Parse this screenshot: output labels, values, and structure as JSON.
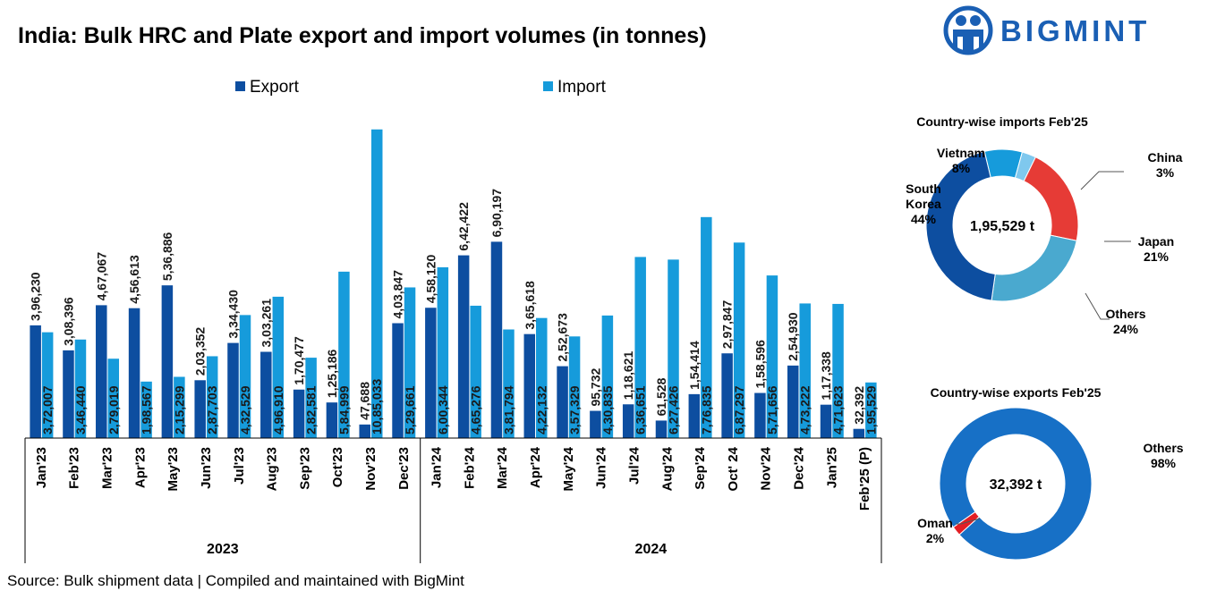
{
  "title": "India: Bulk HRC and Plate export and import volumes (in tonnes)",
  "logo_text": "BIGMINT",
  "source": "Source: Bulk shipment data | Compiled and maintained with BigMint",
  "colors": {
    "export": "#0d4ea0",
    "import": "#169bdb",
    "logo": "#1a5fb4"
  },
  "chart_data": [
    {
      "type": "bar",
      "legend": [
        "Export",
        "Import"
      ],
      "legend_position": "top",
      "grid": false,
      "ylim": [
        0,
        1100000
      ],
      "categories": [
        "Jan'23",
        "Feb'23",
        "Mar'23",
        "Apr'23",
        "May'23",
        "Jun'23",
        "Jul'23",
        "Aug'23",
        "Sep'23",
        "Oct'23",
        "Nov'23",
        "Dec'23",
        "Jan'24",
        "Feb'24",
        "Mar'24",
        "Apr'24",
        "May'24",
        "Jun'24",
        "Jul'24",
        "Aug'24",
        "Sep'24",
        "Oct' 24",
        "Nov'24",
        "Dec'24",
        "Jan'25",
        "Feb'25 (P)"
      ],
      "groups": [
        {
          "label": "2023",
          "start": 0,
          "end": 11
        },
        {
          "label": "2024",
          "start": 12,
          "end": 25
        }
      ],
      "series": [
        {
          "name": "Export",
          "values": [
            396230,
            308396,
            467067,
            456613,
            536886,
            203352,
            334430,
            303261,
            170477,
            125186,
            47688,
            403847,
            458120,
            642422,
            690197,
            365618,
            252673,
            95732,
            118621,
            61528,
            154414,
            297847,
            158596,
            254930,
            117338,
            32392
          ],
          "labels": [
            "3,96,230",
            "3,08,396",
            "4,67,067",
            "4,56,613",
            "5,36,886",
            "2,03,352",
            "3,34,430",
            "3,03,261",
            "1,70,477",
            "1,25,186",
            "47,688",
            "4,03,847",
            "4,58,120",
            "6,42,422",
            "6,90,197",
            "3,65,618",
            "2,52,673",
            "95,732",
            "1,18,621",
            "61,528",
            "1,54,414",
            "2,97,847",
            "1,58,596",
            "2,54,930",
            "1,17,338",
            "32,392"
          ]
        },
        {
          "name": "Import",
          "values": [
            372007,
            346440,
            279019,
            198567,
            215299,
            287703,
            432529,
            496910,
            282581,
            584999,
            1085033,
            529661,
            600344,
            465276,
            381794,
            422132,
            357329,
            430835,
            636651,
            627426,
            776835,
            687297,
            571656,
            473222,
            471623,
            195529
          ],
          "labels": [
            "3,72,007",
            "3,46,440",
            "2,79,019",
            "1,98,567",
            "2,15,299",
            "2,87,703",
            "4,32,529",
            "4,96,910",
            "2,82,581",
            "5,84,999",
            "10,85,033",
            "5,29,661",
            "6,00,344",
            "4,65,276",
            "3,81,794",
            "4,22,132",
            "3,57,329",
            "4,30,835",
            "6,36,651",
            "6,27,426",
            "7,76,835",
            "6,87,297",
            "5,71,656",
            "4,73,222",
            "4,71,623",
            "1,95,529"
          ]
        }
      ]
    },
    {
      "type": "pie",
      "title": "Country-wise imports Feb'25",
      "center_label": "1,95,529 t",
      "slices": [
        {
          "name": "Vietnam",
          "value": 8,
          "label": "8%",
          "color": "#169bdb"
        },
        {
          "name": "China",
          "value": 3,
          "label": "3%",
          "color": "#7fc8ee"
        },
        {
          "name": "Japan",
          "value": 21,
          "label": "21%",
          "color": "#e63b36"
        },
        {
          "name": "Others",
          "value": 24,
          "label": "24%",
          "color": "#4aa9cf"
        },
        {
          "name": "South Korea",
          "value": 44,
          "label": "44%",
          "color": "#0d4ea0"
        }
      ]
    },
    {
      "type": "pie",
      "title": "Country-wise exports Feb'25",
      "center_label": "32,392 t",
      "slices": [
        {
          "name": "Others",
          "value": 98,
          "label": "98%",
          "color": "#1770c6"
        },
        {
          "name": "Oman",
          "value": 2,
          "label": "2%",
          "color": "#e31e24"
        }
      ]
    }
  ]
}
